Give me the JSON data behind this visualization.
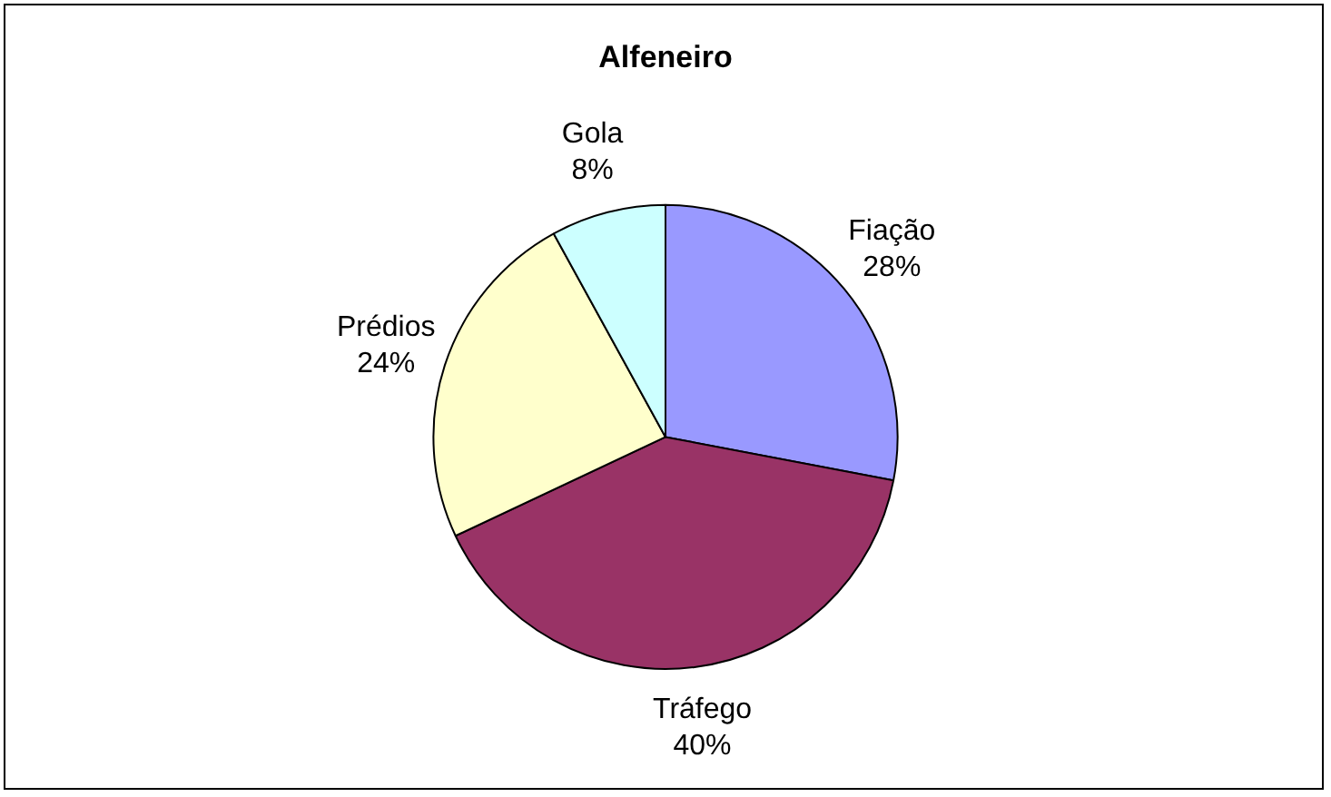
{
  "chart_data": {
    "type": "pie",
    "title": "Alfeneiro",
    "categories": [
      "Fiação",
      "Tráfego",
      "Prédios",
      "Gola"
    ],
    "values": [
      28,
      40,
      24,
      8
    ],
    "colors": [
      "#9999ff",
      "#993366",
      "#ffffcc",
      "#ccffff"
    ],
    "value_labels": [
      "28%",
      "40%",
      "24%",
      "8%"
    ],
    "legend": false
  }
}
